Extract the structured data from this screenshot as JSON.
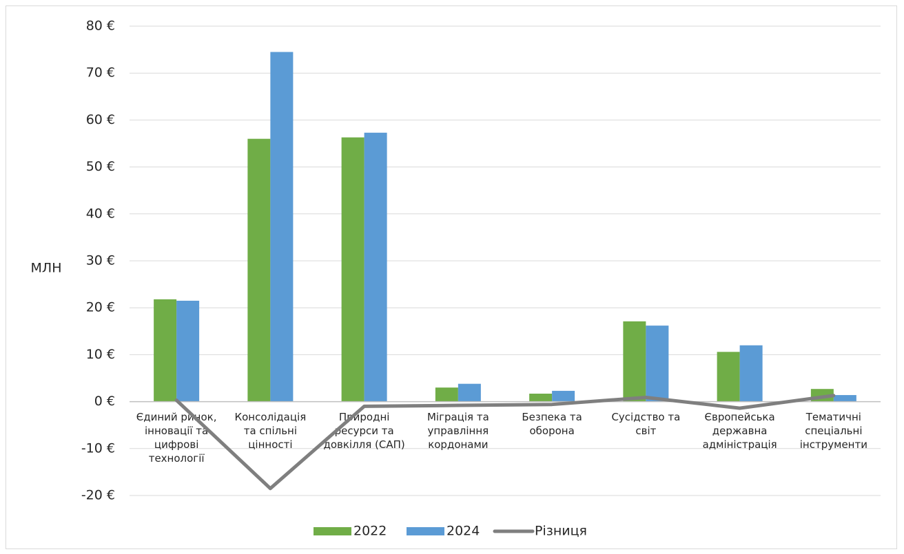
{
  "chart_data": {
    "type": "bar",
    "categories": [
      [
        "Єдиний ринок,",
        "інновації та",
        "цифрові",
        "технології"
      ],
      [
        "Консолідація",
        "та спільні",
        "цінності"
      ],
      [
        "Природні",
        "ресурси та",
        "довкілля (САП)"
      ],
      [
        "Міграція та",
        "управління",
        "кордонами"
      ],
      [
        "Безпека та",
        "оборона"
      ],
      [
        "Сусідство та",
        "світ"
      ],
      [
        "Європейська",
        "державна",
        "адміністрація"
      ],
      [
        "Тематичні",
        "спеціальні",
        "інструменти"
      ]
    ],
    "series": [
      {
        "name": "2022",
        "kind": "bar",
        "color": "#70ad47",
        "values": [
          21.8,
          56.0,
          56.3,
          3.0,
          1.7,
          17.1,
          10.6,
          2.7
        ]
      },
      {
        "name": "2024",
        "kind": "bar",
        "color": "#5b9bd5",
        "values": [
          21.5,
          74.5,
          57.3,
          3.8,
          2.3,
          16.2,
          12.0,
          1.4
        ]
      },
      {
        "name": "Різниця",
        "kind": "line",
        "color": "#7f7f7f",
        "values": [
          0.3,
          -18.5,
          -1.0,
          -0.8,
          -0.6,
          0.9,
          -1.4,
          1.3
        ]
      }
    ],
    "ylabel": "МЛН",
    "ylim": [
      -20,
      80
    ],
    "yticks": [
      80,
      70,
      60,
      50,
      40,
      30,
      20,
      10,
      0,
      -10,
      -20
    ],
    "ytick_labels": [
      "80 €",
      "70 €",
      "60 €",
      "50 €",
      "40 €",
      "30 €",
      "20 €",
      "10 €",
      "0 €",
      "-10 €",
      "-20 €"
    ],
    "grid": true,
    "legend": "bottom",
    "colors": {
      "grid": "#d9d9d9",
      "axis": "#bfbfbf",
      "text": "#262626"
    }
  }
}
